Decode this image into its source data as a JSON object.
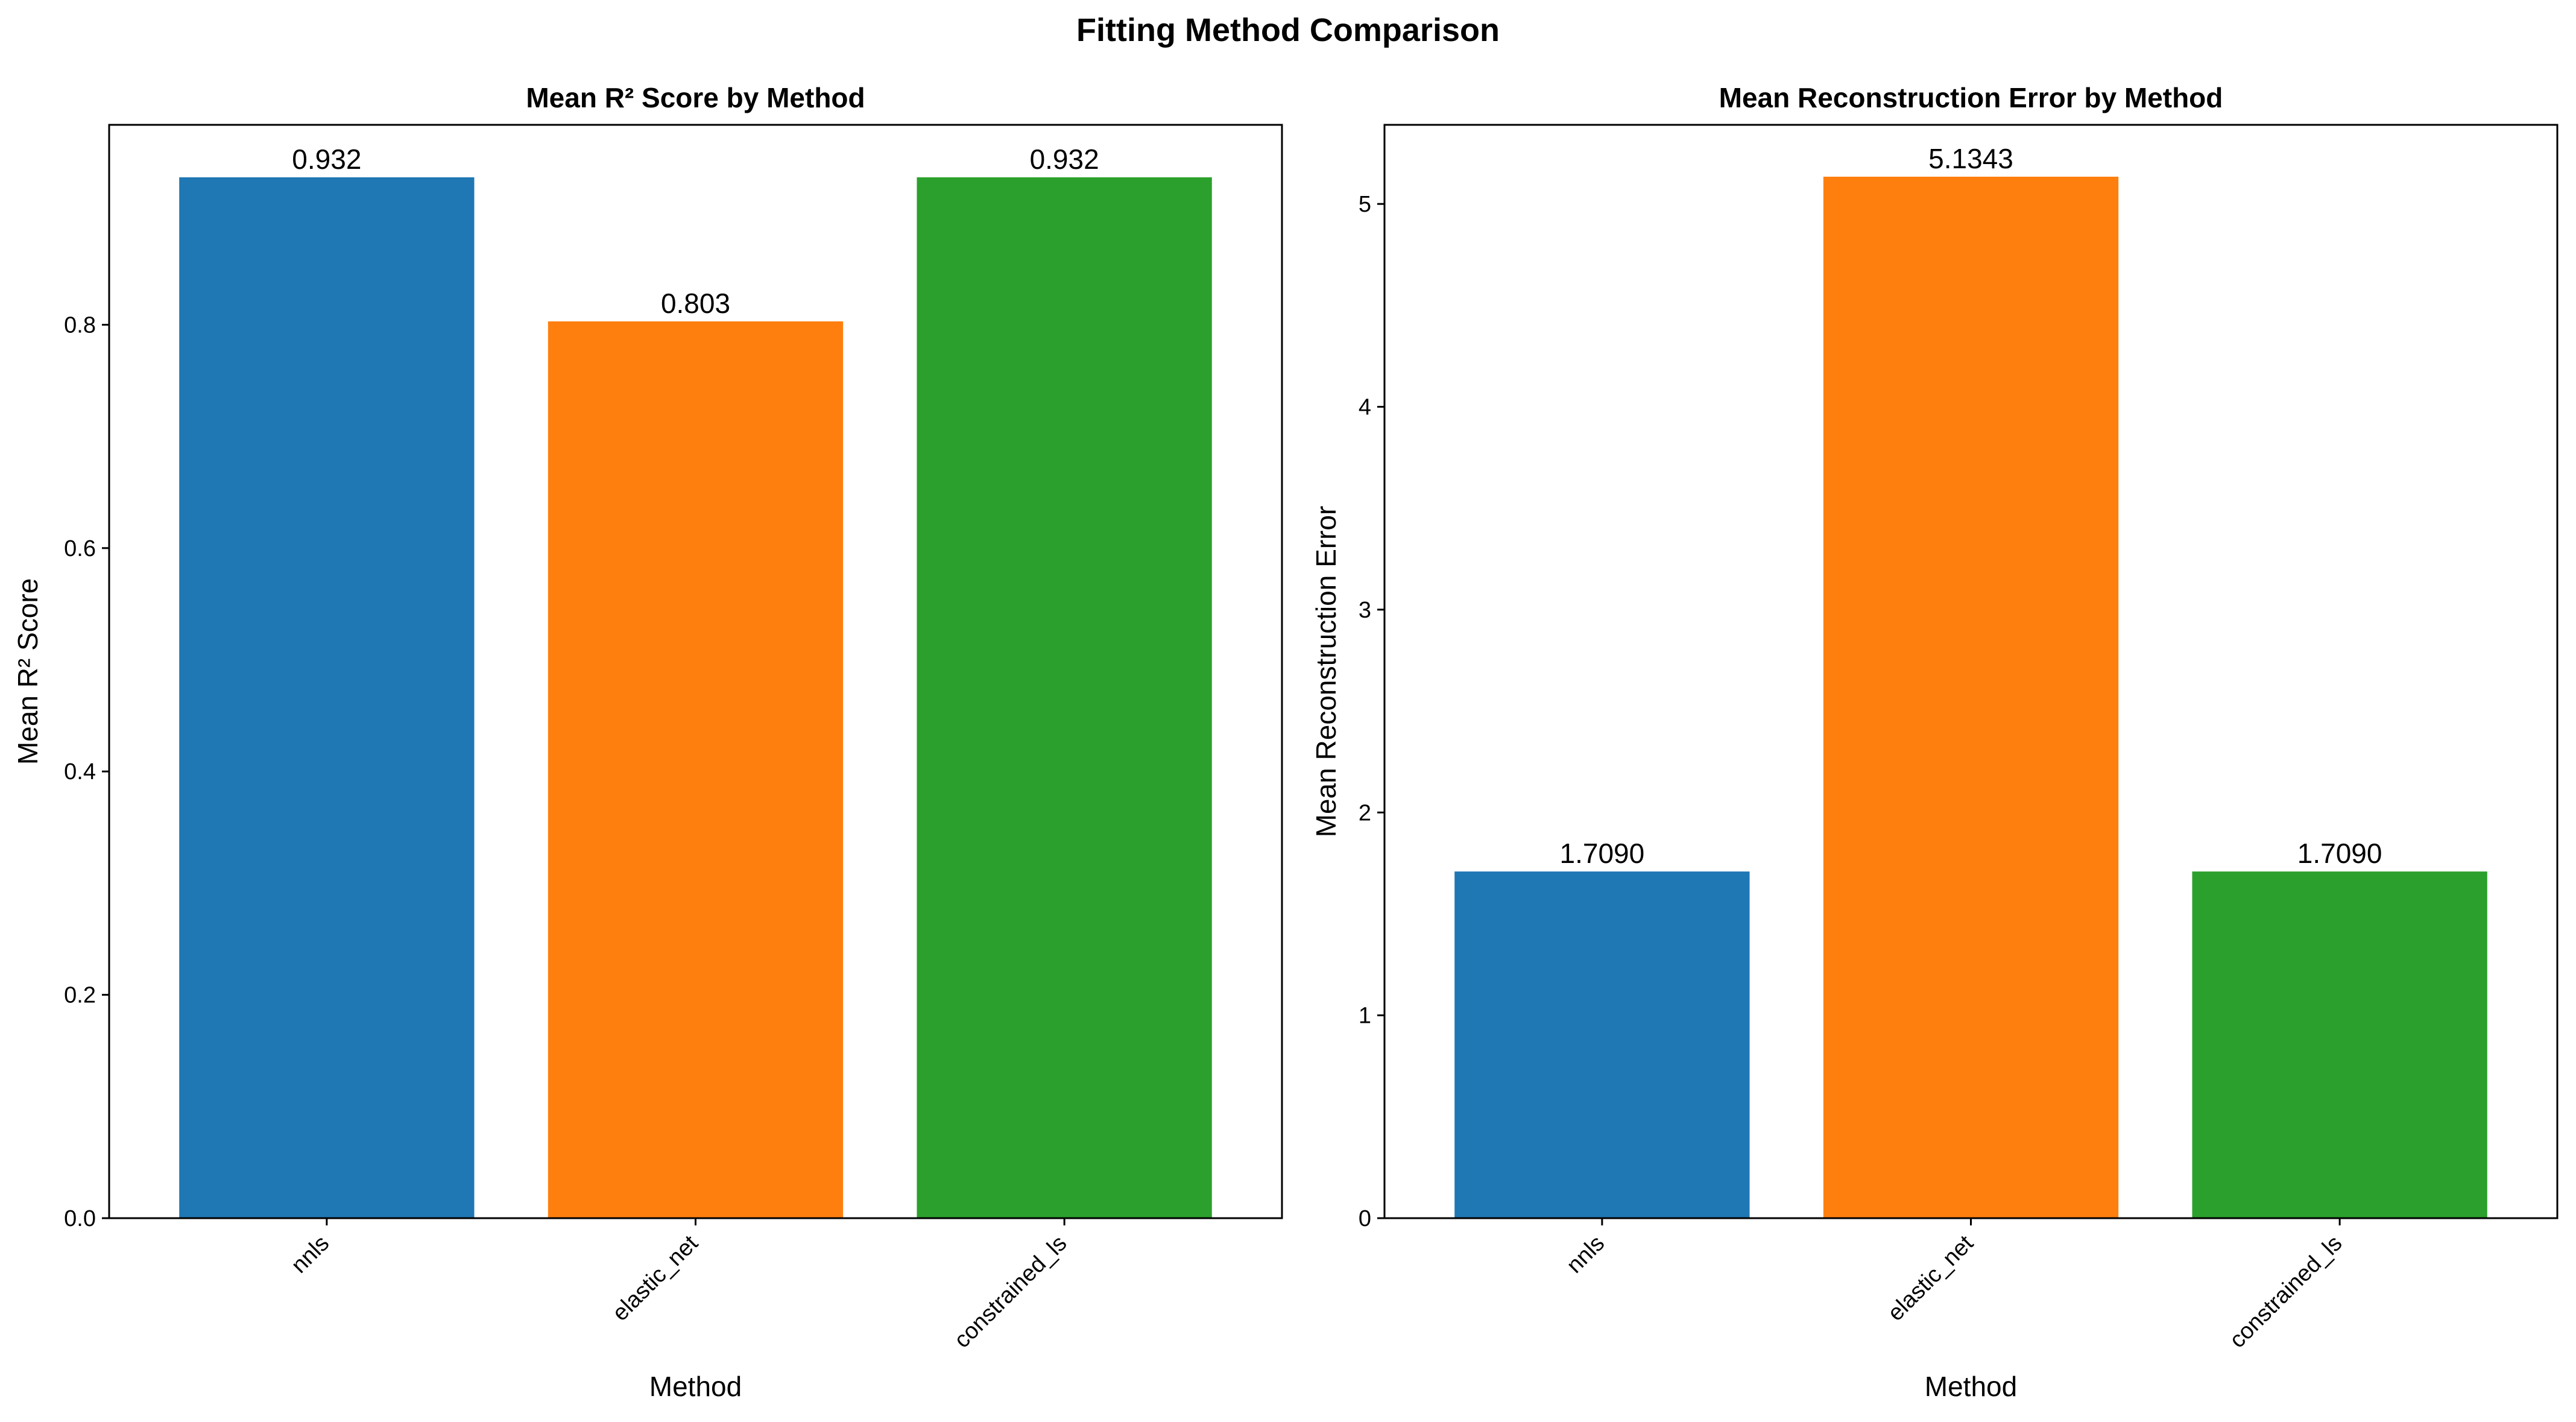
{
  "figure": {
    "title": "Fitting Method Comparison"
  },
  "colors": {
    "nnls": "#1f77b4",
    "elastic_net": "#ff7f0e",
    "constrained_ls": "#2ca02c"
  },
  "chart_data": [
    {
      "type": "bar",
      "title": "Mean R² Score by Method",
      "xlabel": "Method",
      "ylabel": "Mean R² Score",
      "categories": [
        "nnls",
        "elastic_net",
        "constrained_ls"
      ],
      "values": [
        0.932,
        0.803,
        0.932
      ],
      "value_labels": [
        "0.932",
        "0.803",
        "0.932"
      ],
      "ylim": [
        0,
        0.979
      ],
      "yticks": [
        0.0,
        0.2,
        0.4,
        0.6,
        0.8
      ],
      "ytick_labels": [
        "0.0",
        "0.2",
        "0.4",
        "0.6",
        "0.8"
      ],
      "bar_colors": [
        "#1f77b4",
        "#ff7f0e",
        "#2ca02c"
      ],
      "grid": false,
      "x_tick_rotation": "45 degrees"
    },
    {
      "type": "bar",
      "title": "Mean Reconstruction Error by Method",
      "xlabel": "Method",
      "ylabel": "Mean Reconstruction Error",
      "categories": [
        "nnls",
        "elastic_net",
        "constrained_ls"
      ],
      "values": [
        1.709,
        5.1343,
        1.709
      ],
      "value_labels": [
        "1.7090",
        "5.1343",
        "1.7090"
      ],
      "ylim": [
        0,
        5.39
      ],
      "yticks": [
        0,
        1,
        2,
        3,
        4,
        5
      ],
      "ytick_labels": [
        "0",
        "1",
        "2",
        "3",
        "4",
        "5"
      ],
      "bar_colors": [
        "#1f77b4",
        "#ff7f0e",
        "#2ca02c"
      ],
      "grid": false,
      "x_tick_rotation": "45 degrees"
    }
  ]
}
